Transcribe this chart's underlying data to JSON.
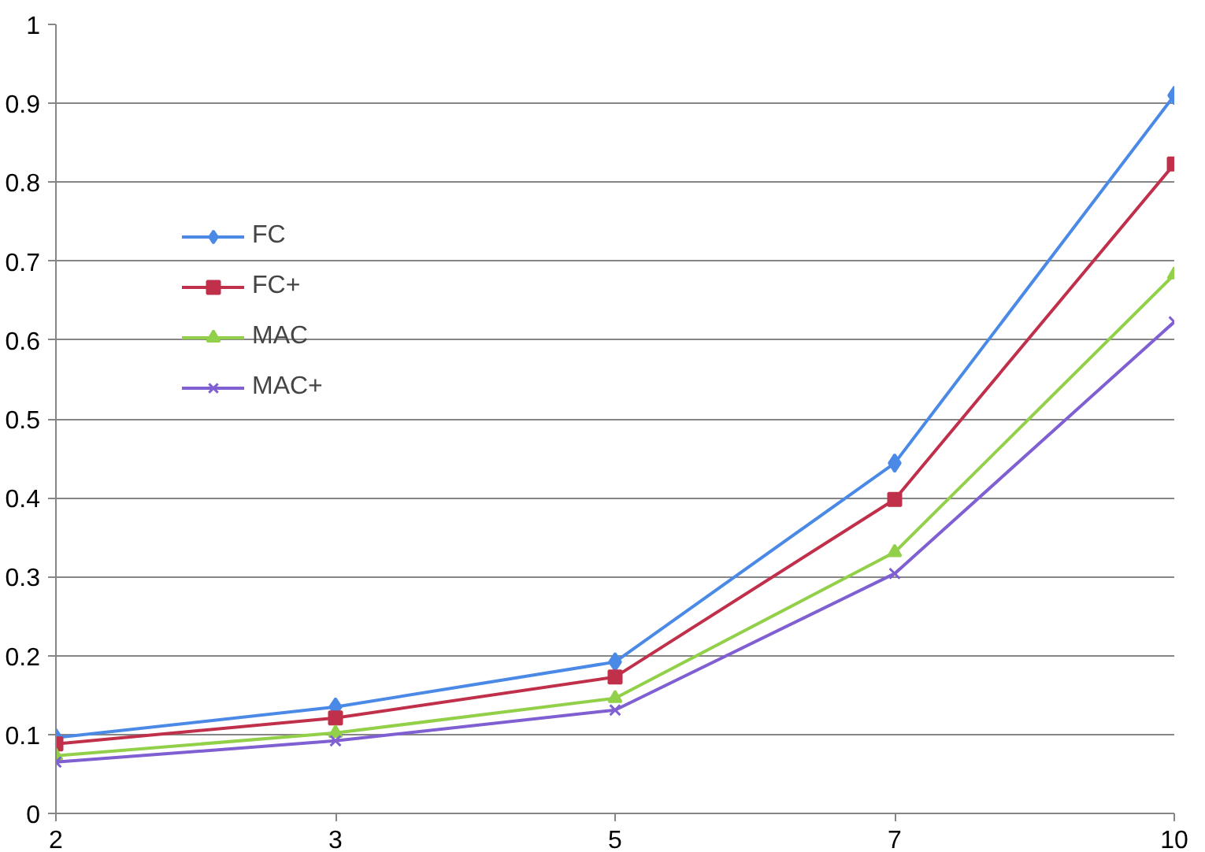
{
  "chart_data": {
    "type": "line",
    "categories": [
      "2",
      "3",
      "5",
      "7",
      "10"
    ],
    "series": [
      {
        "name": "FC",
        "color": "#4a8ae6",
        "marker": "diamond",
        "values": [
          0.096,
          0.135,
          0.192,
          0.444,
          0.91
        ]
      },
      {
        "name": "FC+",
        "color": "#c0304a",
        "marker": "square",
        "values": [
          0.088,
          0.121,
          0.173,
          0.398,
          0.823
        ]
      },
      {
        "name": "MAC",
        "color": "#92d04a",
        "marker": "triangle",
        "values": [
          0.073,
          0.102,
          0.146,
          0.331,
          0.683
        ]
      },
      {
        "name": "MAC+",
        "color": "#7f5fd2",
        "marker": "cross",
        "values": [
          0.065,
          0.092,
          0.131,
          0.304,
          0.623
        ]
      }
    ],
    "ylim": [
      0,
      1
    ],
    "yticks": [
      0,
      0.1,
      0.2,
      0.3,
      0.4,
      0.5,
      0.6,
      0.7,
      0.8,
      0.9,
      1
    ],
    "grid": "y",
    "legend": "top left"
  }
}
